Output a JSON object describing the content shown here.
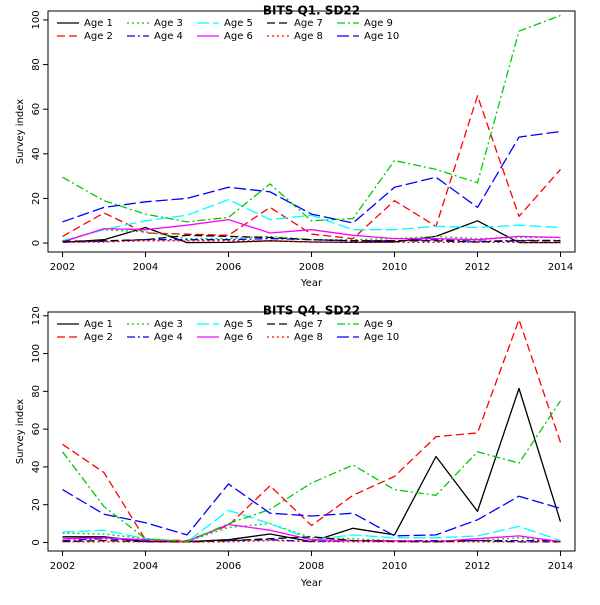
{
  "series_styles": [
    {
      "color": "#000000",
      "dash": "none"
    },
    {
      "color": "#ff0000",
      "dash": "8,4"
    },
    {
      "color": "#00cd00",
      "dash": "2,3"
    },
    {
      "color": "#0000ff",
      "dash": "8,3,2,3"
    },
    {
      "color": "#00ffff",
      "dash": "12,4"
    },
    {
      "color": "#ff00ff",
      "dash": "none"
    },
    {
      "color": "#000000",
      "dash": "8,4"
    },
    {
      "color": "#ff0000",
      "dash": "2,3"
    },
    {
      "color": "#00cd00",
      "dash": "8,3,2,3"
    },
    {
      "color": "#0000ff",
      "dash": "12,4"
    }
  ],
  "chart_data": [
    {
      "type": "line",
      "title": "BITS Q1. SD22",
      "xlabel": "Year",
      "ylabel": "Survey index",
      "x": [
        2002,
        2003,
        2004,
        2005,
        2006,
        2007,
        2008,
        2009,
        2010,
        2011,
        2012,
        2013,
        2014
      ],
      "xticks": [
        2002,
        2004,
        2006,
        2008,
        2010,
        2012,
        2014
      ],
      "yticks": [
        0,
        20,
        40,
        60,
        80,
        100
      ],
      "xlim": [
        2001.65,
        2014.35
      ],
      "ylim": [
        -4,
        104
      ],
      "grid": false,
      "legend": "top-left",
      "series": [
        {
          "name": "Age 1",
          "values": [
            0.3,
            1.5,
            7,
            0.2,
            0.3,
            1,
            0.5,
            0.3,
            0.5,
            3,
            10,
            0.2,
            0.2
          ]
        },
        {
          "name": "Age 2",
          "values": [
            3,
            13.5,
            4.5,
            4,
            3.5,
            16,
            4,
            2,
            19,
            7.5,
            66,
            12,
            33
          ]
        },
        {
          "name": "Age 3",
          "values": [
            1,
            6,
            5,
            2,
            2,
            3,
            1.5,
            1.5,
            2,
            3,
            2,
            2.5,
            2.5
          ]
        },
        {
          "name": "Age 4",
          "values": [
            0.5,
            0.8,
            1.5,
            1.5,
            1.5,
            2,
            1.5,
            1,
            1,
            1.5,
            0.8,
            1.2,
            1.2
          ]
        },
        {
          "name": "Age 5",
          "values": [
            1,
            6,
            10,
            12.5,
            19.5,
            10.5,
            12.5,
            6,
            6,
            7.5,
            7,
            8,
            7
          ]
        },
        {
          "name": "Age 6",
          "values": [
            0.5,
            6.5,
            6,
            8,
            10.5,
            4.5,
            6,
            3.5,
            2,
            2,
            1.5,
            3,
            2.5
          ]
        },
        {
          "name": "Age 7",
          "values": [
            0.8,
            1,
            1.5,
            3.5,
            3,
            2.5,
            1.5,
            1,
            1,
            1,
            0.5,
            1,
            1
          ]
        },
        {
          "name": "Age 8",
          "values": [
            0.3,
            0.5,
            1,
            1,
            1,
            1,
            0.5,
            0.3,
            0.3,
            0.3,
            0.3,
            0.3,
            0.3
          ]
        },
        {
          "name": "Age 9",
          "values": [
            29.5,
            19,
            13,
            9.5,
            11.5,
            26.5,
            10,
            11,
            37,
            33,
            27,
            95,
            102
          ]
        },
        {
          "name": "Age 10",
          "values": [
            9.5,
            16,
            18.5,
            20,
            25,
            23,
            13,
            9,
            25,
            29.5,
            16,
            47.5,
            50
          ]
        }
      ]
    },
    {
      "type": "line",
      "title": "BITS Q4. SD22",
      "xlabel": "Year",
      "ylabel": "Survey index",
      "x": [
        2002,
        2003,
        2004,
        2005,
        2006,
        2007,
        2008,
        2009,
        2010,
        2011,
        2012,
        2013,
        2014
      ],
      "xticks": [
        2002,
        2004,
        2006,
        2008,
        2010,
        2012,
        2014
      ],
      "yticks": [
        0,
        20,
        40,
        60,
        80,
        100,
        120
      ],
      "xlim": [
        2001.65,
        2014.35
      ],
      "ylim": [
        -4.5,
        122
      ],
      "grid": false,
      "legend": "top-left",
      "series": [
        {
          "name": "Age 1",
          "values": [
            3,
            3,
            0.5,
            0.5,
            1.5,
            4.5,
            0.5,
            7.5,
            4,
            45.5,
            16.5,
            81.5,
            11
          ]
        },
        {
          "name": "Age 2",
          "values": [
            52,
            37,
            1.5,
            1,
            9,
            30,
            9,
            25,
            35,
            56,
            58,
            118,
            53
          ]
        },
        {
          "name": "Age 3",
          "values": [
            5,
            4.5,
            2,
            0.5,
            8,
            10,
            2.5,
            2,
            1,
            0.5,
            1,
            2.5,
            0.5
          ]
        },
        {
          "name": "Age 4",
          "values": [
            1,
            2,
            1,
            0.5,
            1,
            1.5,
            0.5,
            1,
            1,
            1,
            1,
            1,
            1
          ]
        },
        {
          "name": "Age 5",
          "values": [
            5.5,
            6.5,
            2,
            0.3,
            17,
            10,
            1.5,
            4,
            2.5,
            2.5,
            3.5,
            8.5,
            1
          ]
        },
        {
          "name": "Age 6",
          "values": [
            2,
            2.5,
            1.5,
            0.5,
            9.5,
            6.5,
            1.5,
            1,
            1,
            0.5,
            2,
            3.5,
            0.5
          ]
        },
        {
          "name": "Age 7",
          "values": [
            0.5,
            1,
            0.5,
            0.3,
            1,
            2,
            3,
            1,
            0.5,
            0.3,
            1,
            0.3,
            0.3
          ]
        },
        {
          "name": "Age 8",
          "values": [
            0.3,
            0.3,
            0.3,
            0.2,
            0.3,
            1,
            0.5,
            0.3,
            0.3,
            0.3,
            0.3,
            0.3,
            0.3
          ]
        },
        {
          "name": "Age 9",
          "values": [
            48,
            19,
            2,
            0.5,
            10,
            17.5,
            31.5,
            41,
            28,
            25,
            48,
            42,
            75
          ]
        },
        {
          "name": "Age 10",
          "values": [
            28,
            15,
            10.5,
            4,
            31,
            15.5,
            14,
            15.5,
            3.5,
            4,
            12,
            24.5,
            18
          ]
        }
      ]
    }
  ]
}
